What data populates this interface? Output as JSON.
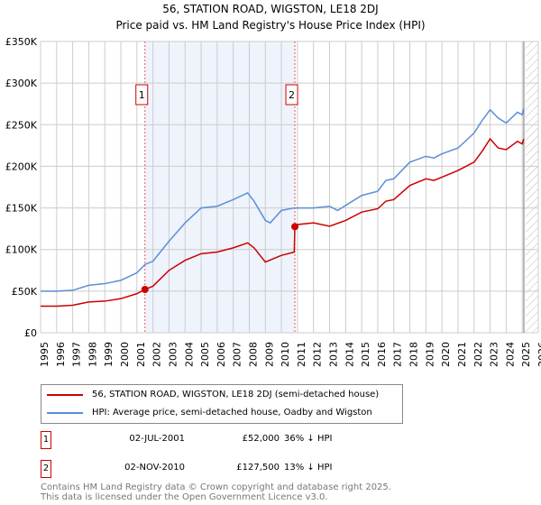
{
  "chart_data": {
    "type": "line",
    "title": "56, STATION ROAD, WIGSTON, LE18 2DJ",
    "subtitle": "Price paid vs. HM Land Registry's House Price Index (HPI)",
    "xlim": [
      1995,
      2026
    ],
    "ylim": [
      0,
      350000
    ],
    "x_ticks": [
      "1995",
      "1996",
      "1997",
      "1998",
      "1999",
      "2000",
      "2001",
      "2002",
      "2003",
      "2004",
      "2005",
      "2006",
      "2007",
      "2008",
      "2009",
      "2010",
      "2011",
      "2012",
      "2013",
      "2014",
      "2015",
      "2016",
      "2017",
      "2018",
      "2019",
      "2020",
      "2021",
      "2022",
      "2023",
      "2024",
      "2025",
      "2026"
    ],
    "y_ticks": [
      {
        "v": 0,
        "label": "£0"
      },
      {
        "v": 50000,
        "label": "£50K"
      },
      {
        "v": 100000,
        "label": "£100K"
      },
      {
        "v": 150000,
        "label": "£150K"
      },
      {
        "v": 200000,
        "label": "£200K"
      },
      {
        "v": 250000,
        "label": "£250K"
      },
      {
        "v": 300000,
        "label": "£300K"
      },
      {
        "v": 350000,
        "label": "£350K"
      }
    ],
    "grid": true,
    "series": [
      {
        "name": "56, STATION ROAD, WIGSTON, LE18 2DJ (semi-detached house)",
        "color": "#cc0000",
        "x": [
          1995,
          1996,
          1997,
          1998,
          1999,
          2000,
          2001,
          2001.5,
          2002,
          2003,
          2004,
          2005,
          2006,
          2007,
          2007.9,
          2008.3,
          2009,
          2010,
          2010.8,
          2010.84,
          2011,
          2012,
          2013,
          2014,
          2015,
          2016,
          2016.5,
          2017,
          2018,
          2019,
          2019.5,
          2020,
          2021,
          2022,
          2022.5,
          2023,
          2023.5,
          2024,
          2024.7,
          2025,
          2025.1
        ],
        "y": [
          32000,
          32000,
          33000,
          37000,
          38000,
          41000,
          47000,
          52000,
          56000,
          75000,
          87000,
          95000,
          97000,
          102000,
          108000,
          102000,
          85000,
          93000,
          97000,
          127500,
          130000,
          132000,
          128000,
          135000,
          145000,
          149000,
          158000,
          160000,
          177000,
          185000,
          183000,
          187000,
          195000,
          205000,
          218000,
          233000,
          222000,
          220000,
          230000,
          227000,
          233000
        ]
      },
      {
        "name": "HPI: Average price, semi-detached house, Oadby and Wigston",
        "color": "#5b8fd4",
        "x": [
          1995,
          1996,
          1997,
          1998,
          1999,
          2000,
          2001,
          2001.5,
          2002,
          2003,
          2004,
          2005,
          2006,
          2007,
          2007.9,
          2008.3,
          2009,
          2009.3,
          2010,
          2010.8,
          2011,
          2012,
          2013,
          2013.5,
          2014,
          2015,
          2016,
          2016.5,
          2017,
          2018,
          2019,
          2019.5,
          2020,
          2021,
          2022,
          2022.5,
          2023,
          2023.5,
          2024,
          2024.7,
          2025,
          2025.1
        ],
        "y": [
          50000,
          50000,
          51000,
          57000,
          59000,
          63000,
          72000,
          82000,
          86000,
          110000,
          132000,
          150000,
          152000,
          160000,
          168000,
          158000,
          135000,
          132000,
          147000,
          150000,
          150000,
          150000,
          152000,
          147000,
          153000,
          165000,
          170000,
          183000,
          185000,
          205000,
          212000,
          210000,
          215000,
          222000,
          240000,
          255000,
          268000,
          258000,
          252000,
          265000,
          262000,
          270000
        ]
      }
    ],
    "sales": [
      {
        "label": "1",
        "x": 2001.5,
        "price": 52000,
        "date": "02-JUL-2001",
        "price_text": "£52,000",
        "hpi_text": "36% ↓ HPI"
      },
      {
        "label": "2",
        "x": 2010.84,
        "price": 127500,
        "date": "02-NOV-2010",
        "price_text": "£127,500",
        "hpi_text": "13% ↓ HPI"
      }
    ],
    "legend_placement": "below"
  },
  "footer": {
    "line1": "Contains HM Land Registry data © Crown copyright and database right 2025.",
    "line2": "This data is licensed under the Open Government Licence v3.0."
  }
}
